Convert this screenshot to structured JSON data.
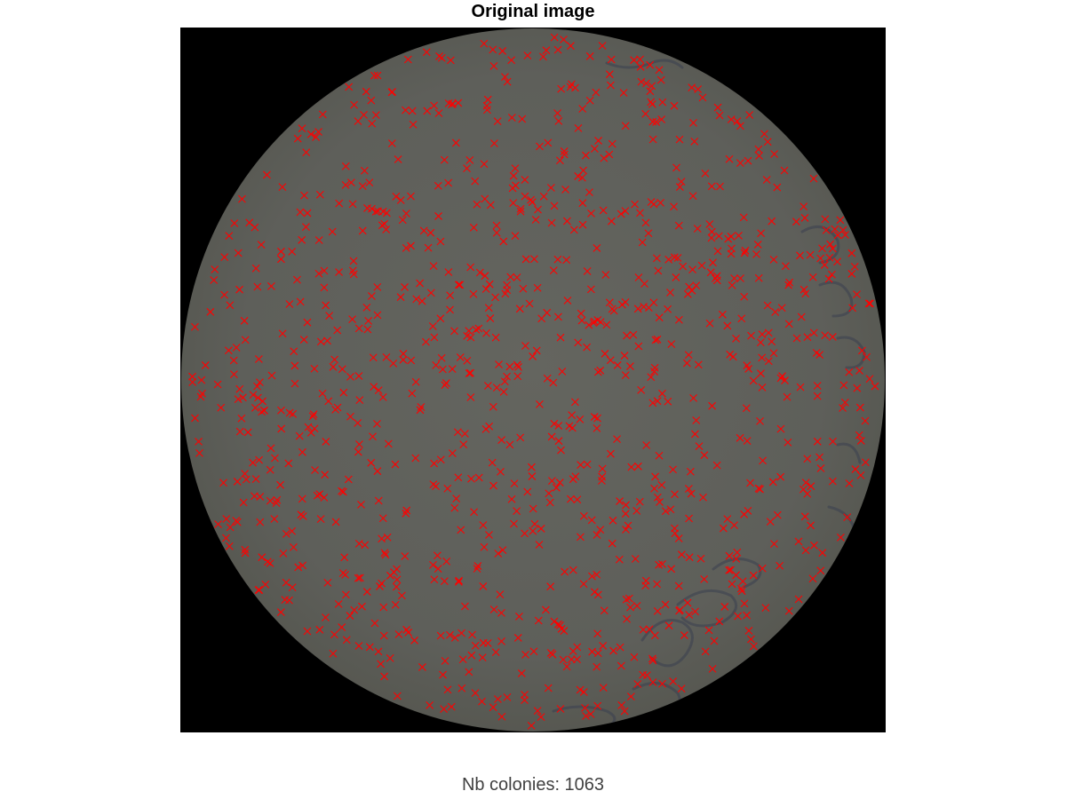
{
  "figure": {
    "title": "Original image",
    "caption": "Nb colonies: 1063"
  },
  "colors": {
    "background": "#000000",
    "plate": "#5f605b",
    "marker": "#ff0000",
    "writing": "#3c4150"
  },
  "markers": {
    "symbol": "x",
    "count": 1063
  }
}
